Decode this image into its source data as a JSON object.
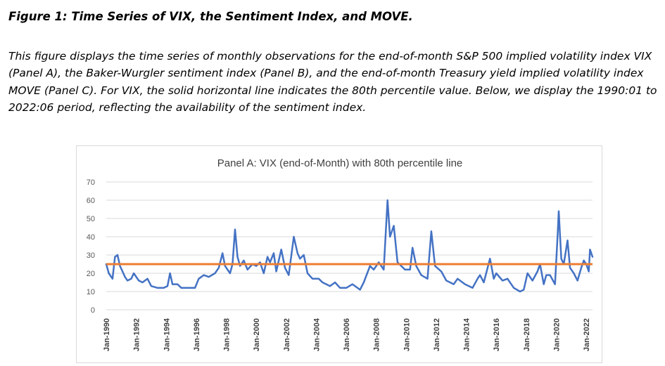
{
  "figure": {
    "title": "Figure 1: Time Series of VIX, the Sentiment Index, and MOVE.",
    "caption": "This figure displays the time series of monthly observations for the end-of-month S&P 500 implied volatility index VIX (Panel A), the Baker-Wurgler sentiment index (Panel B), and the end-of-month Treasury yield implied volatility index MOVE (Panel C). For VIX, the solid horizontal line indicates the 80th percentile value. Below, we display the 1990:01 to 2022:06 period, reflecting the availability of the sentiment index."
  },
  "chart_data": {
    "type": "line",
    "title": "Panel A: VIX (end-of-Month) with 80th percentile line",
    "xlabel": "",
    "ylabel": "",
    "ylim": [
      0,
      70
    ],
    "yticks": [
      0,
      10,
      20,
      30,
      40,
      50,
      60,
      70
    ],
    "xticks": [
      "Jan-1990",
      "Jan-1992",
      "Jan-1994",
      "Jan-1996",
      "Jan-1998",
      "Jan-2000",
      "Jan-2002",
      "Jan-2004",
      "Jan-2006",
      "Jan-2008",
      "Jan-2010",
      "Jan-2012",
      "Jan-2014",
      "Jan-2016",
      "Jan-2018",
      "Jan-2020",
      "Jan-2022"
    ],
    "x_range": [
      "1990-01",
      "2022-06"
    ],
    "grid": true,
    "legend": "none",
    "colors": {
      "vix": "#4472C4",
      "percentile": "#ED7D31",
      "grid": "#d9d9d9",
      "axis_text": "#595959"
    },
    "series": [
      {
        "values": [
          {
            "x": "1990-01",
            "y": 25
          },
          {
            "x": "1990-03",
            "y": 20
          },
          {
            "x": "1990-06",
            "y": 17
          },
          {
            "x": "1990-08",
            "y": 29
          },
          {
            "x": "1990-10",
            "y": 30
          },
          {
            "x": "1990-12",
            "y": 24
          },
          {
            "x": "1991-02",
            "y": 21
          },
          {
            "x": "1991-04",
            "y": 18
          },
          {
            "x": "1991-06",
            "y": 16
          },
          {
            "x": "1991-09",
            "y": 17
          },
          {
            "x": "1991-11",
            "y": 20
          },
          {
            "x": "1992-03",
            "y": 16
          },
          {
            "x": "1992-06",
            "y": 15
          },
          {
            "x": "1992-10",
            "y": 17
          },
          {
            "x": "1993-01",
            "y": 13
          },
          {
            "x": "1993-06",
            "y": 12
          },
          {
            "x": "1993-11",
            "y": 12
          },
          {
            "x": "1994-02",
            "y": 13
          },
          {
            "x": "1994-04",
            "y": 20
          },
          {
            "x": "1994-06",
            "y": 14
          },
          {
            "x": "1994-10",
            "y": 14
          },
          {
            "x": "1995-01",
            "y": 12
          },
          {
            "x": "1995-06",
            "y": 12
          },
          {
            "x": "1995-12",
            "y": 12
          },
          {
            "x": "1996-03",
            "y": 17
          },
          {
            "x": "1996-07",
            "y": 19
          },
          {
            "x": "1996-11",
            "y": 18
          },
          {
            "x": "1997-04",
            "y": 20
          },
          {
            "x": "1997-07",
            "y": 23
          },
          {
            "x": "1997-10",
            "y": 31
          },
          {
            "x": "1997-12",
            "y": 24
          },
          {
            "x": "1998-04",
            "y": 20
          },
          {
            "x": "1998-06",
            "y": 25
          },
          {
            "x": "1998-08",
            "y": 44
          },
          {
            "x": "1998-10",
            "y": 29
          },
          {
            "x": "1998-12",
            "y": 24
          },
          {
            "x": "1999-03",
            "y": 27
          },
          {
            "x": "1999-06",
            "y": 22
          },
          {
            "x": "1999-10",
            "y": 25
          },
          {
            "x": "2000-01",
            "y": 24
          },
          {
            "x": "2000-04",
            "y": 26
          },
          {
            "x": "2000-07",
            "y": 20
          },
          {
            "x": "2000-10",
            "y": 29
          },
          {
            "x": "2000-12",
            "y": 26
          },
          {
            "x": "2001-03",
            "y": 31
          },
          {
            "x": "2001-05",
            "y": 21
          },
          {
            "x": "2001-09",
            "y": 33
          },
          {
            "x": "2001-12",
            "y": 23
          },
          {
            "x": "2002-03",
            "y": 19
          },
          {
            "x": "2002-07",
            "y": 40
          },
          {
            "x": "2002-10",
            "y": 31
          },
          {
            "x": "2002-12",
            "y": 28
          },
          {
            "x": "2003-03",
            "y": 30
          },
          {
            "x": "2003-06",
            "y": 20
          },
          {
            "x": "2003-10",
            "y": 17
          },
          {
            "x": "2004-03",
            "y": 17
          },
          {
            "x": "2004-06",
            "y": 15
          },
          {
            "x": "2004-12",
            "y": 13
          },
          {
            "x": "2005-04",
            "y": 15
          },
          {
            "x": "2005-08",
            "y": 12
          },
          {
            "x": "2006-01",
            "y": 12
          },
          {
            "x": "2006-06",
            "y": 14
          },
          {
            "x": "2006-12",
            "y": 11
          },
          {
            "x": "2007-03",
            "y": 15
          },
          {
            "x": "2007-08",
            "y": 24
          },
          {
            "x": "2007-11",
            "y": 22
          },
          {
            "x": "2008-03",
            "y": 26
          },
          {
            "x": "2008-07",
            "y": 22
          },
          {
            "x": "2008-10",
            "y": 60
          },
          {
            "x": "2008-12",
            "y": 40
          },
          {
            "x": "2009-03",
            "y": 46
          },
          {
            "x": "2009-06",
            "y": 26
          },
          {
            "x": "2009-12",
            "y": 22
          },
          {
            "x": "2010-04",
            "y": 22
          },
          {
            "x": "2010-06",
            "y": 34
          },
          {
            "x": "2010-09",
            "y": 24
          },
          {
            "x": "2011-01",
            "y": 19
          },
          {
            "x": "2011-06",
            "y": 17
          },
          {
            "x": "2011-09",
            "y": 43
          },
          {
            "x": "2011-12",
            "y": 24
          },
          {
            "x": "2012-05",
            "y": 21
          },
          {
            "x": "2012-09",
            "y": 16
          },
          {
            "x": "2013-03",
            "y": 14
          },
          {
            "x": "2013-06",
            "y": 17
          },
          {
            "x": "2013-12",
            "y": 14
          },
          {
            "x": "2014-06",
            "y": 12
          },
          {
            "x": "2014-10",
            "y": 17
          },
          {
            "x": "2014-12",
            "y": 19
          },
          {
            "x": "2015-03",
            "y": 15
          },
          {
            "x": "2015-08",
            "y": 28
          },
          {
            "x": "2015-11",
            "y": 17
          },
          {
            "x": "2016-01",
            "y": 20
          },
          {
            "x": "2016-06",
            "y": 16
          },
          {
            "x": "2016-10",
            "y": 17
          },
          {
            "x": "2017-03",
            "y": 12
          },
          {
            "x": "2017-08",
            "y": 10
          },
          {
            "x": "2017-11",
            "y": 11
          },
          {
            "x": "2018-02",
            "y": 20
          },
          {
            "x": "2018-06",
            "y": 16
          },
          {
            "x": "2018-10",
            "y": 21
          },
          {
            "x": "2018-12",
            "y": 25
          },
          {
            "x": "2019-03",
            "y": 14
          },
          {
            "x": "2019-05",
            "y": 19
          },
          {
            "x": "2019-08",
            "y": 19
          },
          {
            "x": "2019-12",
            "y": 14
          },
          {
            "x": "2020-02",
            "y": 40
          },
          {
            "x": "2020-03",
            "y": 54
          },
          {
            "x": "2020-05",
            "y": 28
          },
          {
            "x": "2020-07",
            "y": 25
          },
          {
            "x": "2020-10",
            "y": 38
          },
          {
            "x": "2020-12",
            "y": 23
          },
          {
            "x": "2021-03",
            "y": 20
          },
          {
            "x": "2021-06",
            "y": 16
          },
          {
            "x": "2021-09",
            "y": 23
          },
          {
            "x": "2021-11",
            "y": 27
          },
          {
            "x": "2022-01",
            "y": 25
          },
          {
            "x": "2022-03",
            "y": 21
          },
          {
            "x": "2022-04",
            "y": 33
          },
          {
            "x": "2022-06",
            "y": 29
          }
        ]
      },
      {
        "values": [
          {
            "x": "1990-01",
            "y": 25
          },
          {
            "x": "2022-06",
            "y": 25
          }
        ]
      }
    ]
  }
}
